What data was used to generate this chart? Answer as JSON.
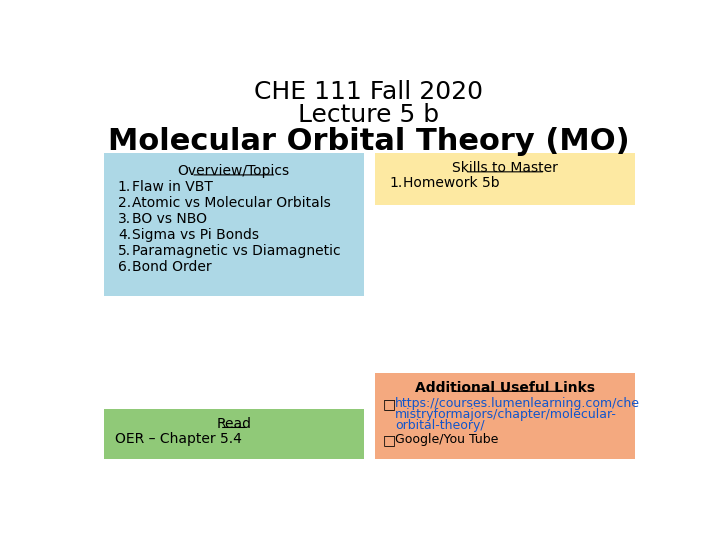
{
  "title_line1": "CHE 111 Fall 2020",
  "title_line2": "Lecture 5 b",
  "title_line3": "Molecular Orbital Theory (MO)",
  "bg_color": "#ffffff",
  "overview_bg": "#add8e6",
  "overview_title": "Overview/Topics",
  "overview_items": [
    "Flaw in VBT",
    "Atomic vs Molecular Orbitals",
    "BO vs NBO",
    "Sigma vs Pi Bonds",
    "Paramagnetic vs Diamagnetic",
    "Bond Order"
  ],
  "skills_bg": "#fde9a2",
  "skills_title": "Skills to Master",
  "skills_items": [
    "Homework 5b"
  ],
  "read_bg": "#90c978",
  "read_title": "Read",
  "read_text": "OER – Chapter 5.4",
  "links_bg": "#f4a97f",
  "links_title": "Additional Useful Links",
  "link1_part1": "https://courses.lumenlearning.com/che",
  "link1_part2": "mistryformajors/chapter/molecular-",
  "link1_part3": "orbital-theory/",
  "link2": "Google/You Tube"
}
